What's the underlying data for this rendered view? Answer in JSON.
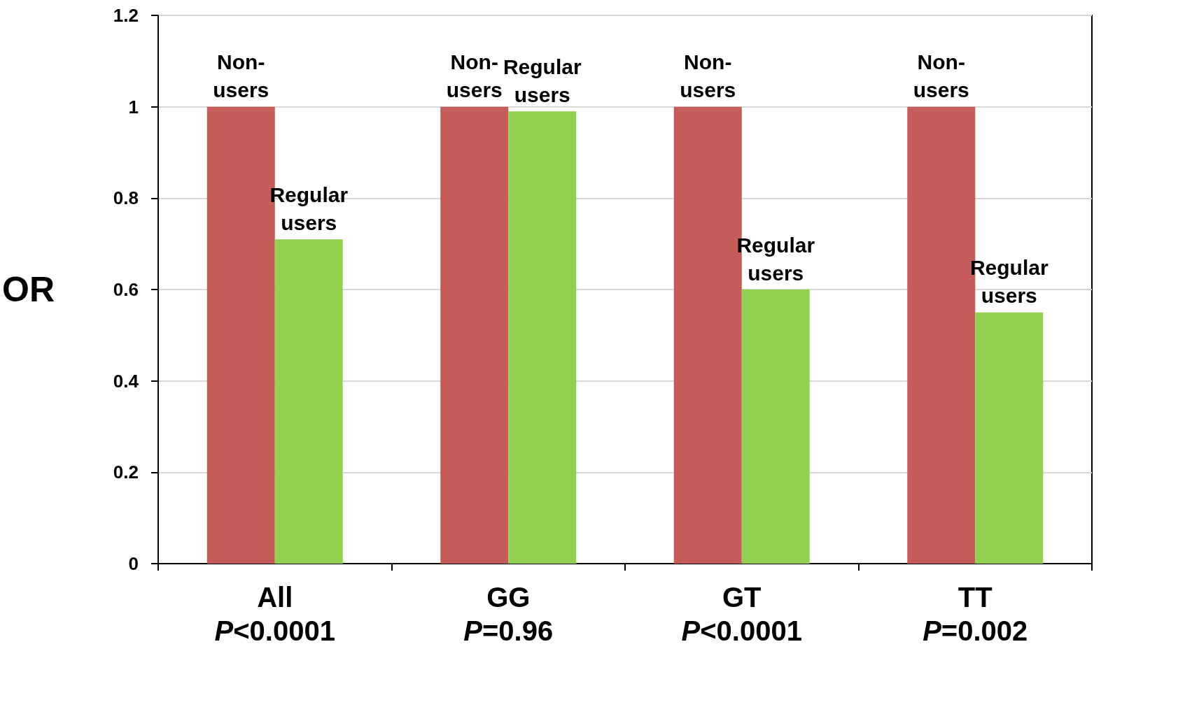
{
  "chart_data": {
    "type": "bar",
    "ylabel": "OR",
    "categories": [
      "All\nP<0.0001",
      "GG\nP=0.96",
      "GT\nP<0.0001",
      "TT\nP=0.002"
    ],
    "series": [
      {
        "name": "Non-users",
        "color": "#c55c5a",
        "values": [
          1,
          1,
          1,
          1
        ]
      },
      {
        "name": "Regular users",
        "color": "#92d050",
        "values": [
          0.71,
          0.99,
          0.6,
          0.55
        ]
      }
    ],
    "ylim": [
      0,
      1.2
    ],
    "yticks": [
      0,
      0.2,
      0.4,
      0.6,
      0.8,
      1,
      1.2
    ],
    "grid": "y",
    "legend": false
  }
}
